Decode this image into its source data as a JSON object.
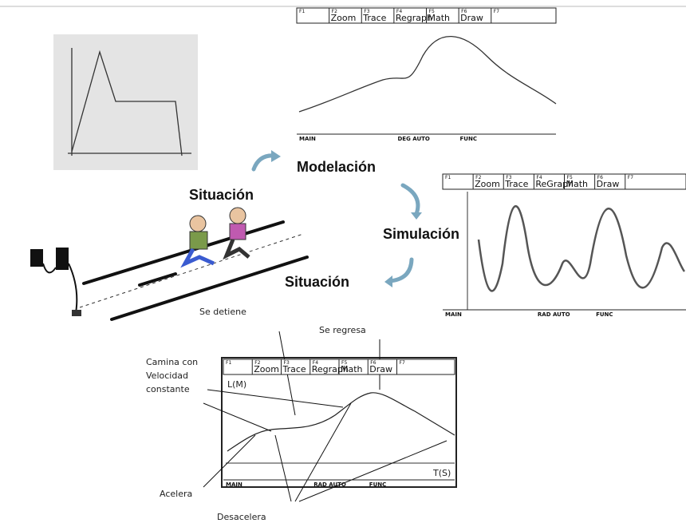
{
  "modelacion": "Modelación",
  "situacion_top": "Situación",
  "simulacion": "Simulación",
  "situacion_bottom": "Situación",
  "se_detiene": "Se detiene",
  "screens": [
    {
      "fkeys": [
        "F1",
        "F2",
        "F3",
        "F4",
        "F5",
        "F6",
        "F7"
      ],
      "toolbar": [
        "Zoom",
        "Trace",
        "Regraph",
        "Math",
        "Draw"
      ],
      "status": [
        "MAIN",
        "DEG AUTO",
        "FUNC"
      ]
    },
    {
      "fkeys": [
        "F1",
        "F2",
        "F3",
        "F4",
        "F5",
        "F6",
        "F7"
      ],
      "toolbar": [
        "Zoom",
        "Trace",
        "ReGraph",
        "Math",
        "Draw"
      ],
      "status": [
        "MAIN",
        "RAD AUTO",
        "FUNC"
      ]
    },
    {
      "fkeys": [
        "F1",
        "F2",
        "F3",
        "F4",
        "F5",
        "F6",
        "F7"
      ],
      "toolbar": [
        "Zoom",
        "Trace",
        "Regraph",
        "Math",
        "Draw"
      ],
      "status": [
        "MAIN",
        "RAD AUTO",
        "FUNC"
      ],
      "y_label": "L(M)",
      "x_label": "T(S)"
    }
  ],
  "annotations": {
    "se_regresa": "Se regresa",
    "camina": [
      "Camina con",
      "Velocidad",
      "constante"
    ],
    "acelera": "Acelera",
    "desacelera": "Desacelera"
  }
}
